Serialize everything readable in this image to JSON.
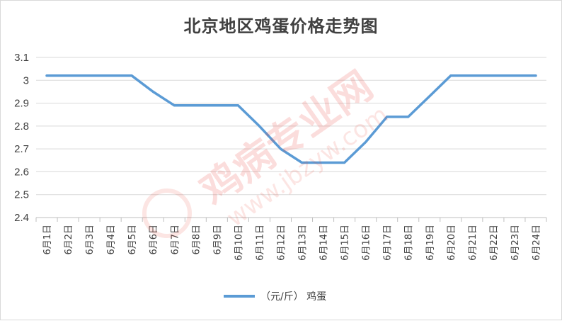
{
  "chart_data": {
    "type": "line",
    "title": "北京地区鸡蛋价格走势图",
    "categories": [
      "6月1日",
      "6月2日",
      "6月3日",
      "6月4日",
      "6月5日",
      "6月6日",
      "6月7日",
      "6月8日",
      "6月9日",
      "6月10日",
      "6月11日",
      "6月12日",
      "6月13日",
      "6月14日",
      "6月15日",
      "6月16日",
      "6月17日",
      "6月18日",
      "6月19日",
      "6月20日",
      "6月21日",
      "6月22日",
      "6月23日",
      "6月24日"
    ],
    "series": [
      {
        "name": "（元/斤） 鸡蛋",
        "color": "#5b9bd5",
        "values": [
          3.02,
          3.02,
          3.02,
          3.02,
          3.02,
          2.95,
          2.89,
          2.89,
          2.89,
          2.89,
          2.8,
          2.7,
          2.64,
          2.64,
          2.64,
          2.73,
          2.84,
          2.84,
          2.93,
          3.02,
          3.02,
          3.02,
          3.02,
          3.02
        ]
      }
    ],
    "yticks": [
      "2.4",
      "2.5",
      "2.6",
      "2.7",
      "2.8",
      "2.9",
      "3",
      "3.1"
    ],
    "ylim": [
      2.4,
      3.1
    ],
    "grid": true,
    "legend_position": "bottom"
  },
  "watermark": {
    "text": "鸡病专业网",
    "url": "www.jbzyw.com"
  }
}
